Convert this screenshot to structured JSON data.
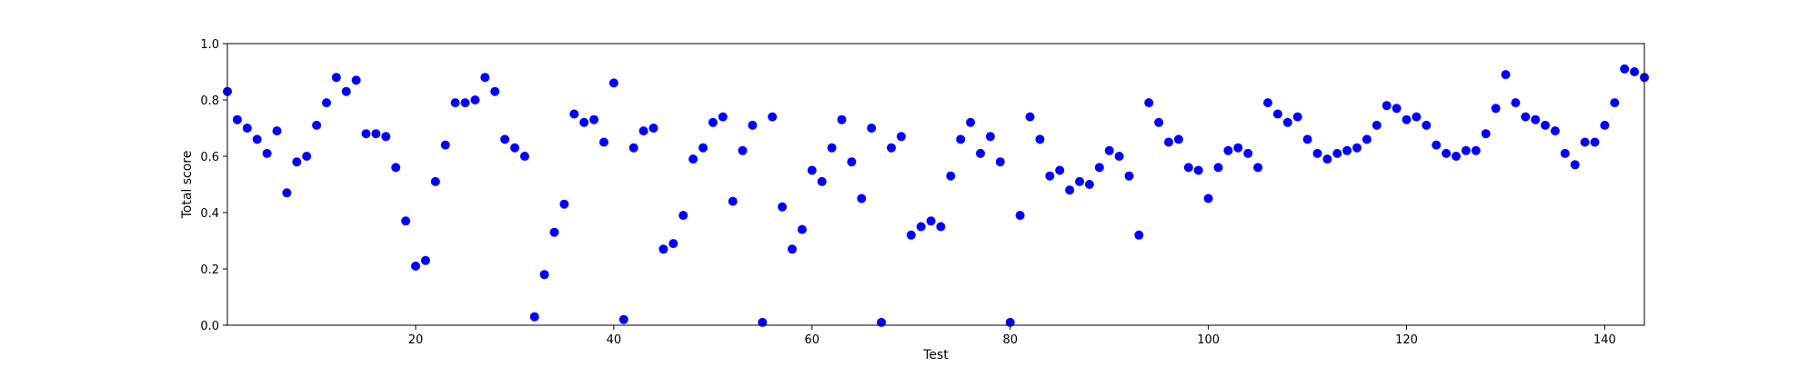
{
  "chart_data": {
    "type": "scatter",
    "title": "",
    "xlabel": "Test",
    "ylabel": "Total score",
    "xlim": [
      1,
      144
    ],
    "ylim": [
      0.0,
      1.0
    ],
    "x_ticks": [
      20,
      40,
      60,
      80,
      100,
      120,
      140
    ],
    "y_ticks": [
      0.0,
      0.2,
      0.4,
      0.6,
      0.8,
      1.0
    ],
    "x_tick_labels": [
      "20",
      "40",
      "60",
      "80",
      "100",
      "120",
      "140"
    ],
    "y_tick_labels": [
      "0.0",
      "0.2",
      "0.4",
      "0.6",
      "0.8",
      "1.0"
    ],
    "grid": false,
    "marker_color": "#0000ff",
    "series": [
      {
        "x": [
          1,
          2,
          3,
          4,
          5,
          6,
          7,
          8,
          9,
          10,
          11,
          12,
          13,
          14,
          15,
          16,
          17,
          18,
          19,
          20,
          21,
          22,
          23,
          24,
          25,
          26,
          27,
          28,
          29,
          30,
          31,
          32,
          33,
          34,
          35,
          36,
          37,
          38,
          39,
          40,
          41,
          42,
          43,
          44,
          45,
          46,
          47,
          48,
          49,
          50,
          51,
          52,
          53,
          54,
          55,
          56,
          57,
          58,
          59,
          60,
          61,
          62,
          63,
          64,
          65,
          66,
          67,
          68,
          69,
          70,
          71,
          72,
          73,
          74,
          75,
          76,
          77,
          78,
          79,
          80,
          81,
          82,
          83,
          84,
          85,
          86,
          87,
          88,
          89,
          90,
          91,
          92,
          93,
          94,
          95,
          96,
          97,
          98,
          99,
          100,
          101,
          102,
          103,
          104,
          105,
          106,
          107,
          108,
          109,
          110,
          111,
          112,
          113,
          114,
          115,
          116,
          117,
          118,
          119,
          120,
          121,
          122,
          123,
          124,
          125,
          126,
          127,
          128,
          129,
          130,
          131,
          132,
          133,
          134,
          135,
          136,
          137,
          138,
          139,
          140,
          141,
          142,
          143,
          144
        ],
        "values": [
          0.83,
          0.73,
          0.7,
          0.66,
          0.61,
          0.69,
          0.47,
          0.58,
          0.6,
          0.71,
          0.79,
          0.88,
          0.83,
          0.87,
          0.68,
          0.68,
          0.67,
          0.56,
          0.37,
          0.21,
          0.23,
          0.51,
          0.64,
          0.79,
          0.79,
          0.8,
          0.88,
          0.83,
          0.66,
          0.63,
          0.6,
          0.03,
          0.18,
          0.33,
          0.43,
          0.75,
          0.72,
          0.73,
          0.65,
          0.86,
          0.02,
          0.63,
          0.69,
          0.7,
          0.27,
          0.29,
          0.39,
          0.59,
          0.63,
          0.72,
          0.74,
          0.44,
          0.62,
          0.71,
          0.01,
          0.74,
          0.42,
          0.27,
          0.34,
          0.55,
          0.51,
          0.63,
          0.73,
          0.58,
          0.45,
          0.7,
          0.01,
          0.63,
          0.67,
          0.32,
          0.35,
          0.37,
          0.35,
          0.53,
          0.66,
          0.72,
          0.61,
          0.67,
          0.58,
          0.01,
          0.39,
          0.74,
          0.66,
          0.53,
          0.55,
          0.48,
          0.51,
          0.5,
          0.56,
          0.62,
          0.6,
          0.53,
          0.32,
          0.79,
          0.72,
          0.65,
          0.66,
          0.56,
          0.55,
          0.45,
          0.56,
          0.62,
          0.63,
          0.61,
          0.56,
          0.79,
          0.75,
          0.72,
          0.74,
          0.66,
          0.61,
          0.59,
          0.61,
          0.62,
          0.63,
          0.66,
          0.71,
          0.78,
          0.77,
          0.73,
          0.74,
          0.71,
          0.64,
          0.61,
          0.6,
          0.62,
          0.62,
          0.68,
          0.77,
          0.89,
          0.79,
          0.74,
          0.73,
          0.71,
          0.69,
          0.61,
          0.57,
          0.65,
          0.65,
          0.71,
          0.79,
          0.91,
          0.9,
          0.88
        ]
      }
    ]
  }
}
